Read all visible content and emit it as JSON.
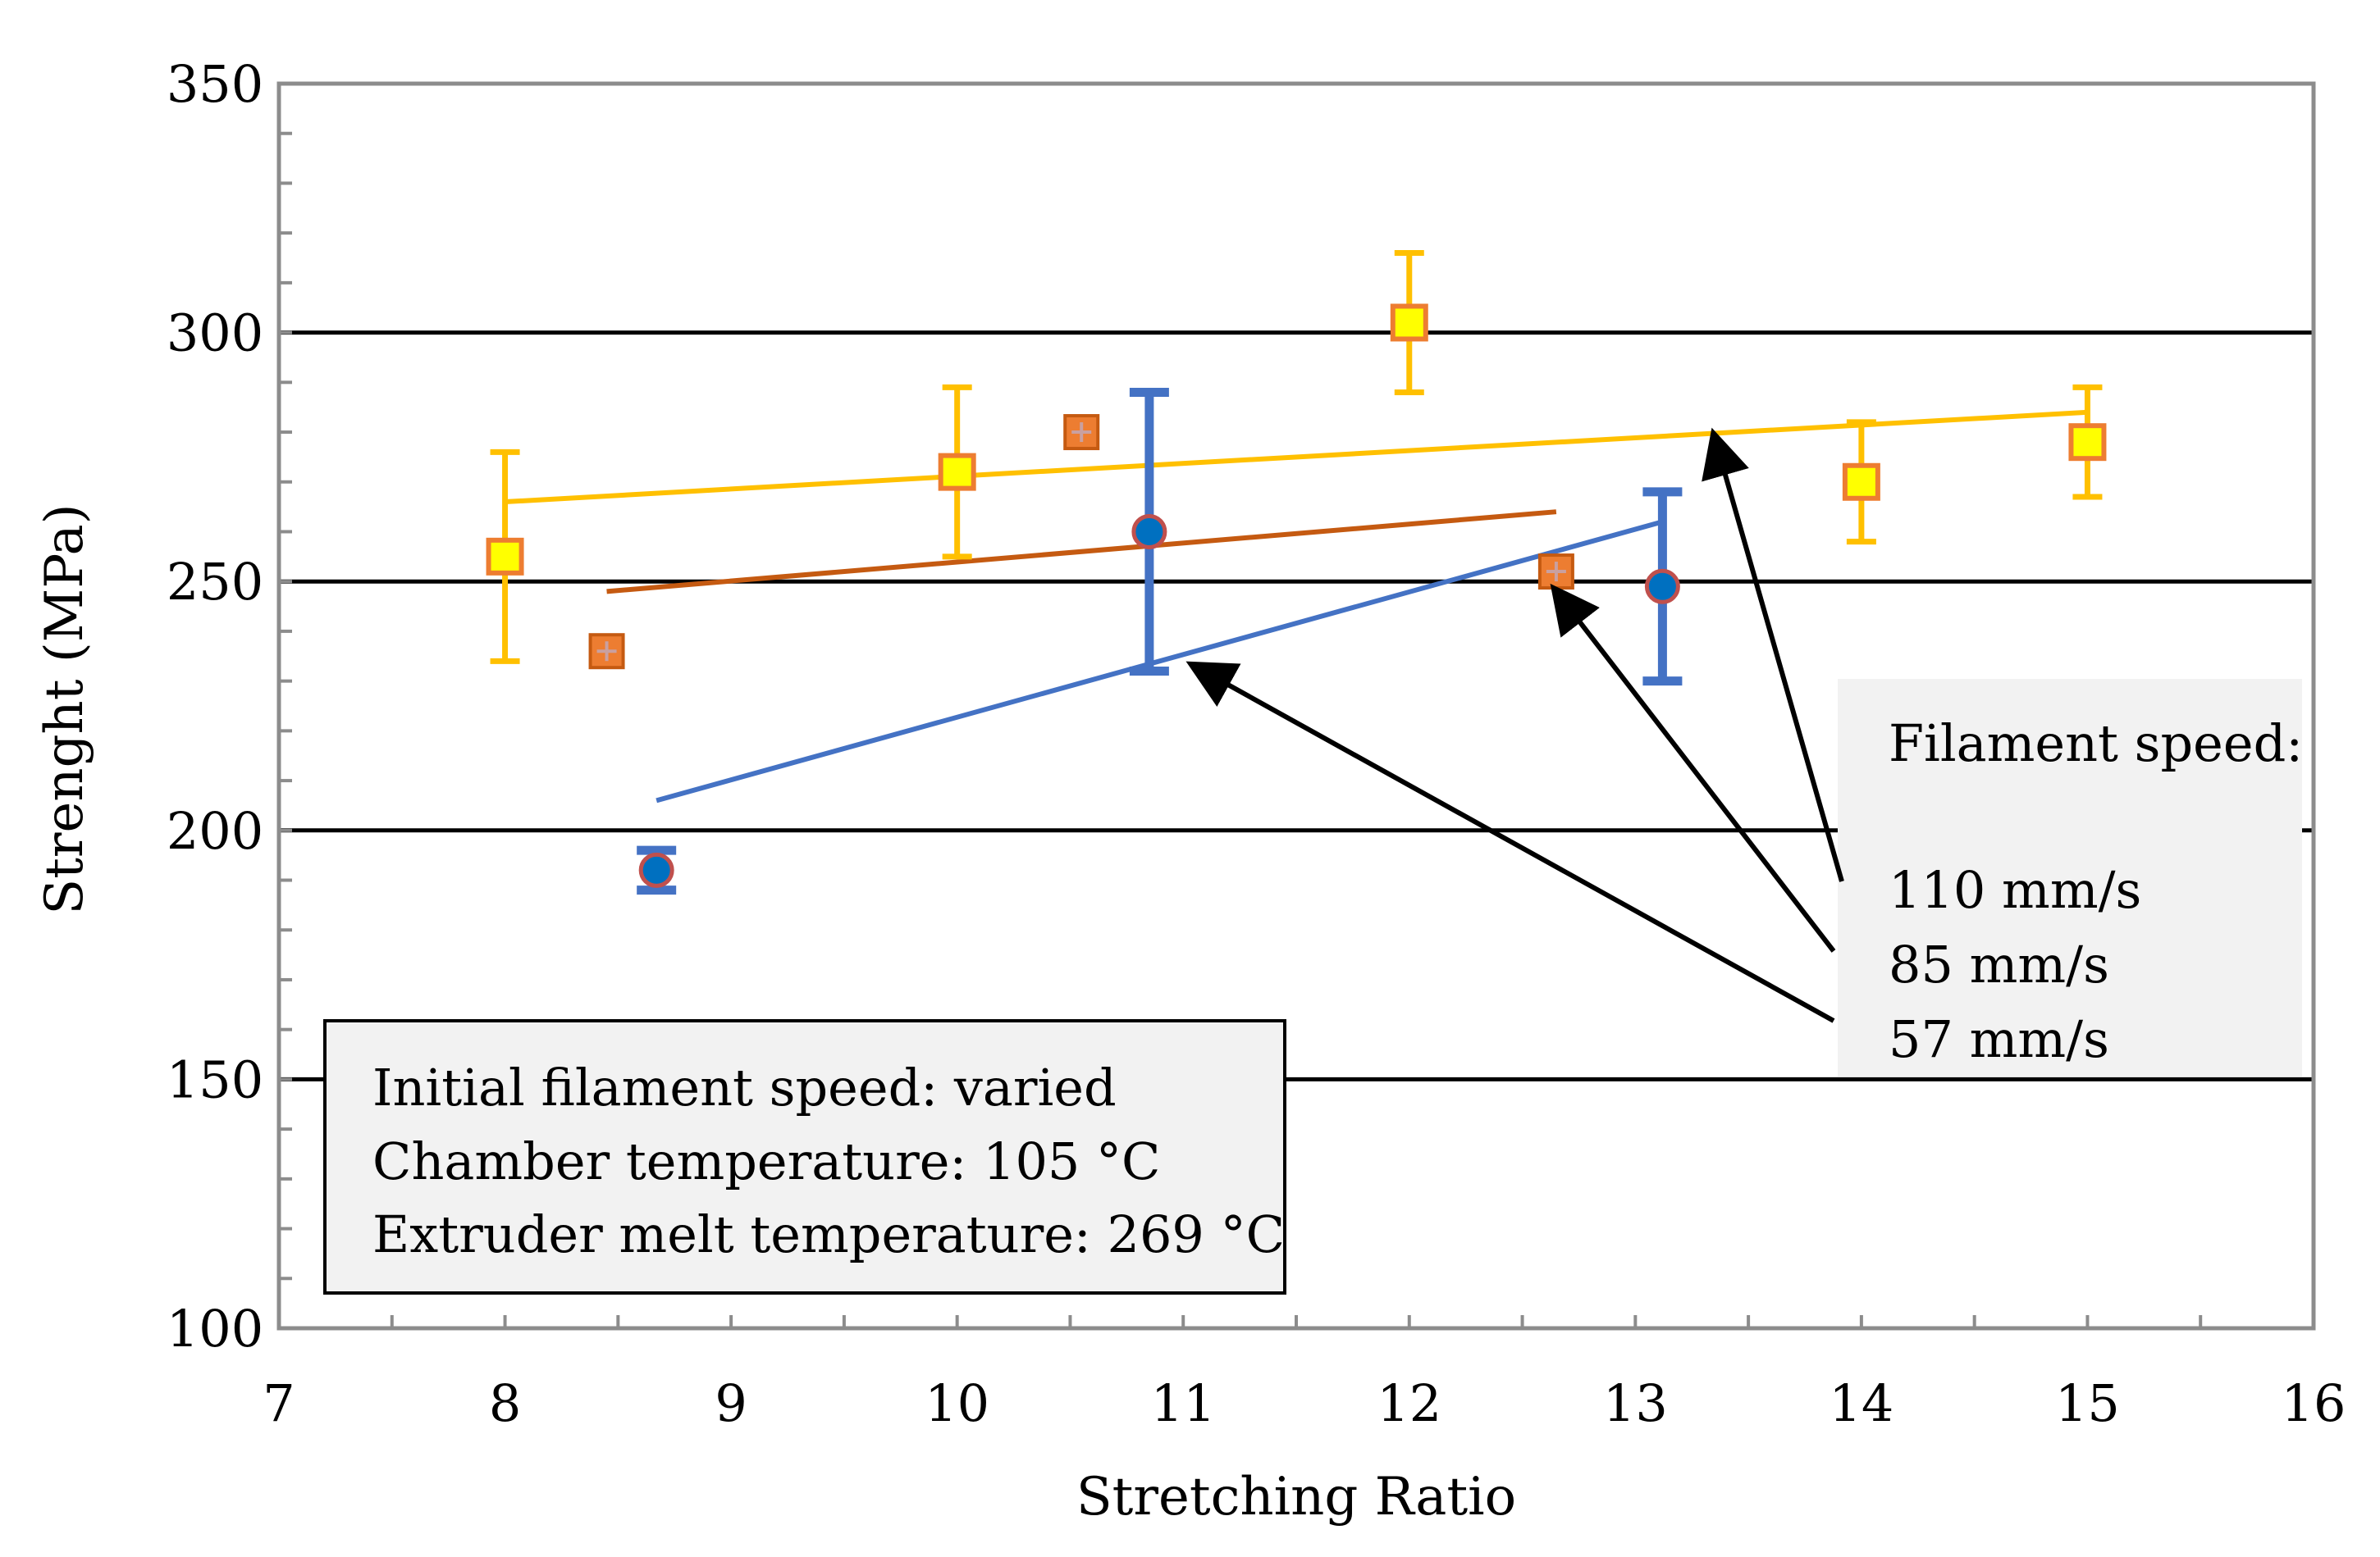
{
  "chart_data": {
    "type": "scatter",
    "title": "",
    "xlabel": "Stretching Ratio",
    "ylabel": "Strenght (MPa)",
    "xlim": [
      7,
      16
    ],
    "ylim": [
      100,
      350
    ],
    "x_ticks": [
      7,
      8,
      9,
      10,
      11,
      12,
      13,
      14,
      15,
      16
    ],
    "y_ticks": [
      100,
      150,
      200,
      250,
      300,
      350
    ],
    "gridlines_y": [
      150,
      200,
      250,
      300
    ],
    "series": [
      {
        "name": "110 mm/s",
        "color": "#FFC000",
        "marker": "square-yellow",
        "points": [
          {
            "x": 8.0,
            "y": 255,
            "err": 21
          },
          {
            "x": 10.0,
            "y": 272,
            "err": 17
          },
          {
            "x": 12.0,
            "y": 302,
            "err": 14
          },
          {
            "x": 14.0,
            "y": 270,
            "err": 12
          },
          {
            "x": 15.0,
            "y": 278,
            "err": 11
          }
        ],
        "trend": {
          "x0": 8.0,
          "y0": 266,
          "x1": 15.0,
          "y1": 284
        }
      },
      {
        "name": "85 mm/s",
        "color": "#C55A11",
        "marker": "square-orange",
        "points": [
          {
            "x": 8.45,
            "y": 236
          },
          {
            "x": 10.55,
            "y": 280
          },
          {
            "x": 12.65,
            "y": 252
          }
        ],
        "trend": {
          "x0": 8.45,
          "y0": 248,
          "x1": 12.65,
          "y1": 264
        }
      },
      {
        "name": "57 mm/s",
        "color": "#4472C4",
        "marker": "circle-blue",
        "points": [
          {
            "x": 8.67,
            "y": 192,
            "err": 4
          },
          {
            "x": 10.85,
            "y": 260,
            "err": 28
          },
          {
            "x": 13.12,
            "y": 249,
            "err": 19
          }
        ],
        "trend": {
          "x0": 8.67,
          "y0": 206,
          "x1": 13.12,
          "y1": 262
        }
      }
    ],
    "annotations": {
      "conditions_box": {
        "lines": [
          "Initial filament speed: varied",
          "Chamber temperature: 105 °C",
          "Extruder melt temperature: 269 °C"
        ]
      },
      "legend_box": {
        "heading": "Filament speed:",
        "entries": [
          "110 mm/s",
          "85 mm/s",
          "57 mm/s"
        ]
      },
      "arrows": [
        {
          "label": "110 mm/s",
          "target_x": 13.35,
          "target_y": 279
        },
        {
          "label": "85 mm/s",
          "target_x": 12.65,
          "target_y": 248
        },
        {
          "label": "57 mm/s",
          "target_x": 11.05,
          "target_y": 233
        }
      ]
    }
  }
}
